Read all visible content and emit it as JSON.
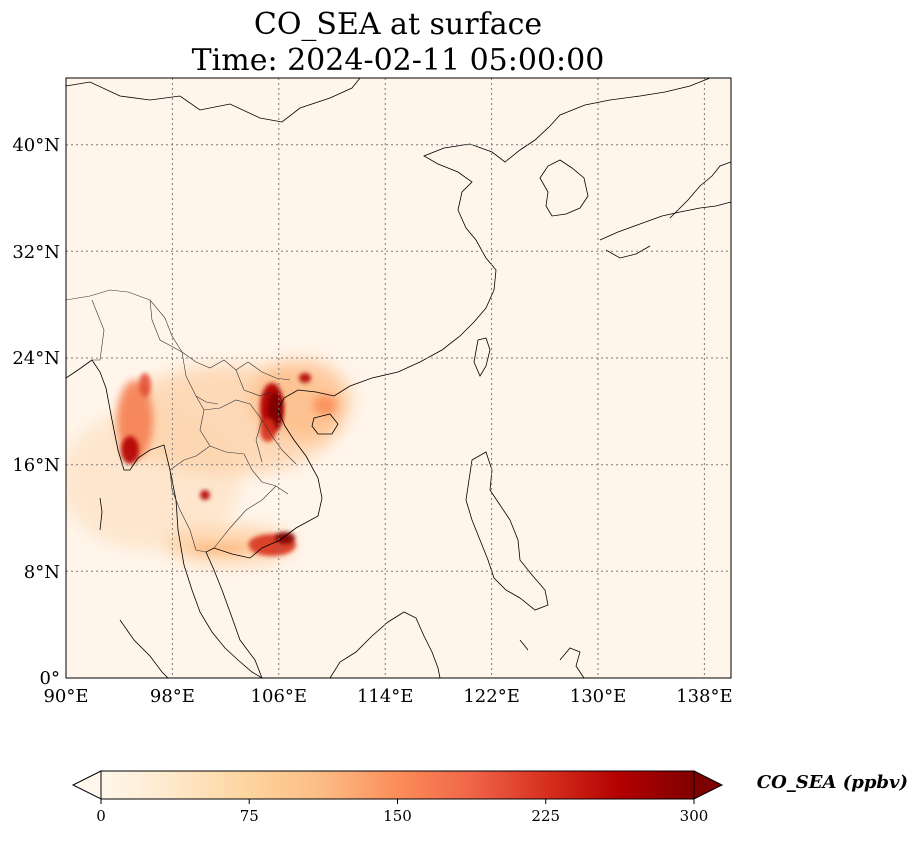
{
  "title_line1": "CO_SEA at surface",
  "title_line2": "Time: 2024-02-11 05:00:00",
  "map": {
    "lon_ticks": [
      "90°E",
      "98°E",
      "106°E",
      "114°E",
      "122°E",
      "130°E",
      "138°E"
    ],
    "lat_ticks": [
      "40°N",
      "32°N",
      "24°N",
      "16°N",
      "8°N",
      "0°"
    ],
    "lon_range": [
      90,
      140
    ],
    "lat_range": [
      0,
      45
    ],
    "gridlines": true,
    "background_color": "#fff5eb"
  },
  "colorbar": {
    "label": "CO_SEA (ppbv)",
    "ticks": [
      "0",
      "75",
      "150",
      "225",
      "300"
    ],
    "range": [
      0,
      300
    ],
    "extend": "both",
    "colormap": "OrRd",
    "colors": [
      "#fff7ec",
      "#fee8c8",
      "#fdd49e",
      "#fdbb84",
      "#fc8d59",
      "#ef6548",
      "#d7301f",
      "#b30000",
      "#7f0000"
    ]
  }
}
